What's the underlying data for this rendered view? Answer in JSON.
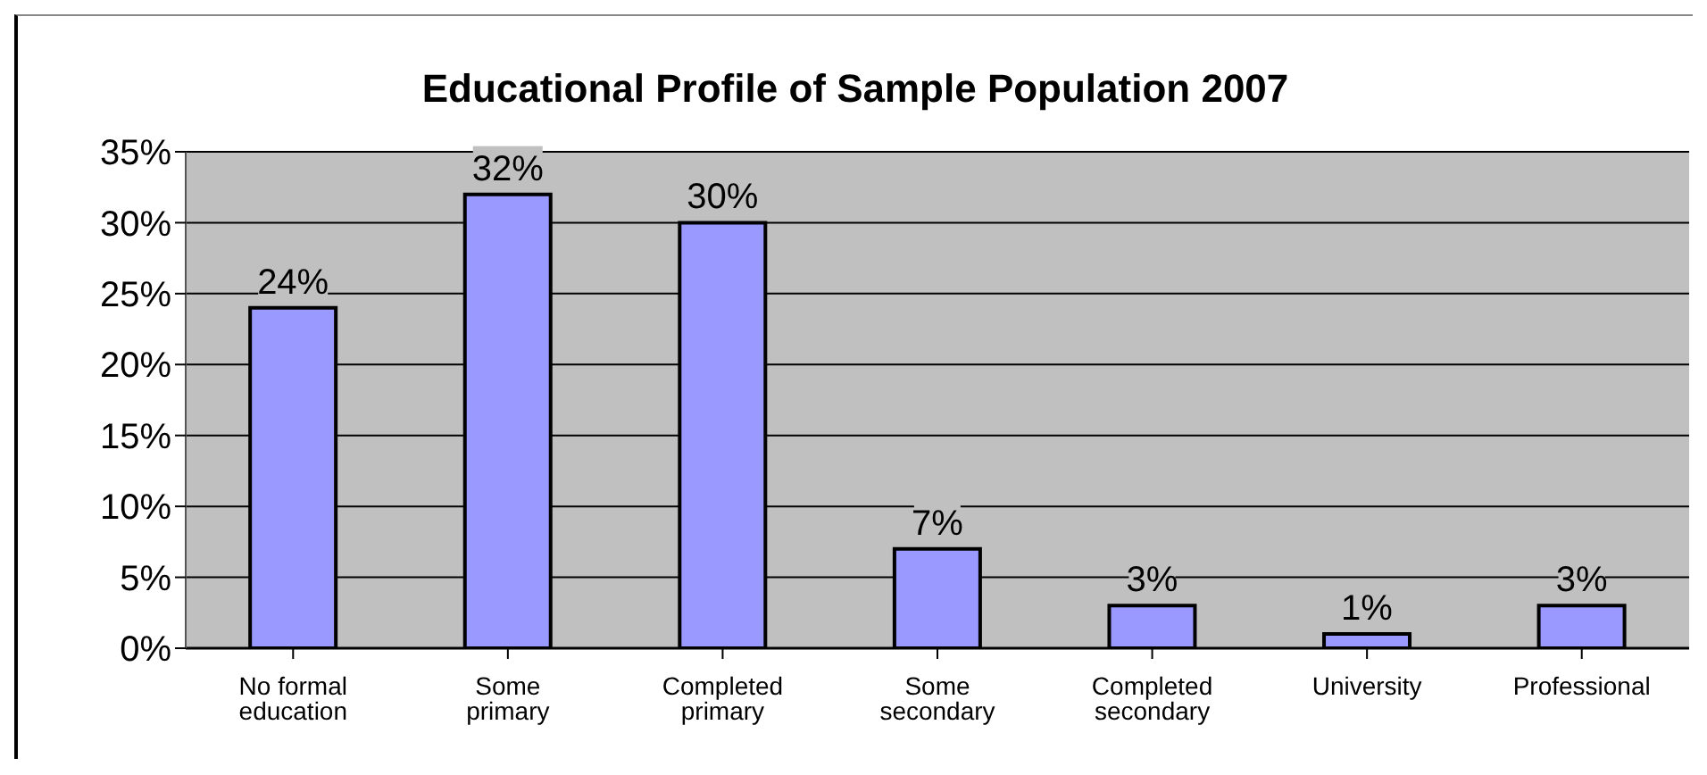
{
  "chart_data": {
    "type": "bar",
    "title": "Educational Profile of Sample Population 2007",
    "categories": [
      "No formal education",
      "Some primary",
      "Completed primary",
      "Some secondary",
      "Completed secondary",
      "University",
      "Professional"
    ],
    "values": [
      24,
      32,
      30,
      7,
      3,
      1,
      3
    ],
    "value_labels": [
      "24%",
      "32%",
      "30%",
      "7%",
      "3%",
      "1%",
      "3%"
    ],
    "color": "#9999ff",
    "ylim": [
      0,
      35
    ],
    "yticks": [
      {
        "value": 0,
        "label": "0%"
      },
      {
        "value": 5,
        "label": "5%"
      },
      {
        "value": 10,
        "label": "10%"
      },
      {
        "value": 15,
        "label": "15%"
      },
      {
        "value": 20,
        "label": "20%"
      },
      {
        "value": 25,
        "label": "25%"
      },
      {
        "value": 30,
        "label": "30%"
      },
      {
        "value": 35,
        "label": "35%"
      }
    ],
    "grid": "y"
  }
}
